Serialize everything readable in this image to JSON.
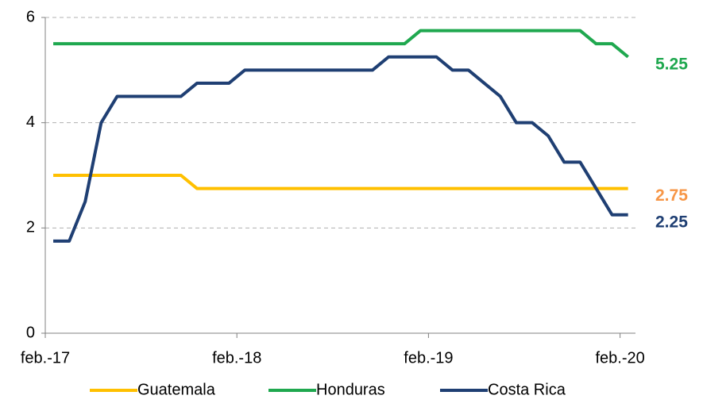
{
  "chart_data": {
    "type": "line",
    "categories": [
      "feb.-17",
      null,
      null,
      null,
      null,
      null,
      null,
      null,
      null,
      null,
      null,
      null,
      "feb.-18",
      null,
      null,
      null,
      null,
      null,
      null,
      null,
      null,
      null,
      null,
      null,
      "feb.-19",
      null,
      null,
      null,
      null,
      null,
      null,
      null,
      null,
      null,
      null,
      null,
      "feb.-20"
    ],
    "series": [
      {
        "name": "Guatemala",
        "color": "#ffc000",
        "label_color": "#f79646",
        "values": [
          3,
          3,
          3,
          3,
          3,
          3,
          3,
          3,
          3,
          2.75,
          2.75,
          2.75,
          2.75,
          2.75,
          2.75,
          2.75,
          2.75,
          2.75,
          2.75,
          2.75,
          2.75,
          2.75,
          2.75,
          2.75,
          2.75,
          2.75,
          2.75,
          2.75,
          2.75,
          2.75,
          2.75,
          2.75,
          2.75,
          2.75,
          2.75,
          2.75,
          2.75
        ],
        "value_labels": [
          null,
          null,
          null,
          null,
          null,
          null,
          null,
          null,
          null,
          null,
          null,
          null,
          null,
          null,
          null,
          null,
          null,
          null,
          null,
          null,
          null,
          null,
          null,
          null,
          null,
          null,
          null,
          null,
          null,
          null,
          null,
          null,
          null,
          null,
          null,
          null,
          "2.75"
        ]
      },
      {
        "name": "Honduras",
        "color": "#1fa84f",
        "label_color": "#1fa84f",
        "values": [
          5.5,
          5.5,
          5.5,
          5.5,
          5.5,
          5.5,
          5.5,
          5.5,
          5.5,
          5.5,
          5.5,
          5.5,
          5.5,
          5.5,
          5.5,
          5.5,
          5.5,
          5.5,
          5.5,
          5.5,
          5.5,
          5.5,
          5.5,
          5.75,
          5.75,
          5.75,
          5.75,
          5.75,
          5.75,
          5.75,
          5.75,
          5.75,
          5.75,
          5.75,
          5.5,
          5.5,
          5.25
        ],
        "value_labels": [
          null,
          null,
          null,
          null,
          null,
          null,
          null,
          null,
          null,
          null,
          null,
          null,
          null,
          null,
          null,
          null,
          null,
          null,
          null,
          null,
          null,
          null,
          null,
          null,
          null,
          null,
          null,
          null,
          null,
          null,
          null,
          null,
          null,
          null,
          null,
          null,
          "5.25"
        ]
      },
      {
        "name": "Costa Rica",
        "color": "#1f3f73",
        "label_color": "#1f3f73",
        "values": [
          1.75,
          1.75,
          2.5,
          4,
          4.5,
          4.5,
          4.5,
          4.5,
          4.5,
          4.75,
          4.75,
          4.75,
          5,
          5,
          5,
          5,
          5,
          5,
          5,
          5,
          5,
          5.25,
          5.25,
          5.25,
          5.25,
          5,
          5,
          4.75,
          4.5,
          4,
          4,
          3.75,
          3.25,
          3.25,
          2.75,
          2.25,
          2.25
        ],
        "value_labels": [
          null,
          null,
          null,
          null,
          null,
          null,
          null,
          null,
          null,
          null,
          null,
          null,
          null,
          null,
          null,
          null,
          null,
          null,
          null,
          null,
          null,
          null,
          null,
          null,
          null,
          null,
          null,
          null,
          null,
          null,
          null,
          null,
          null,
          null,
          null,
          null,
          "2.25"
        ]
      }
    ],
    "ylim": [
      0,
      6
    ],
    "yticks": [
      0,
      2,
      4,
      6
    ],
    "grid": true,
    "legend": "bottom"
  }
}
